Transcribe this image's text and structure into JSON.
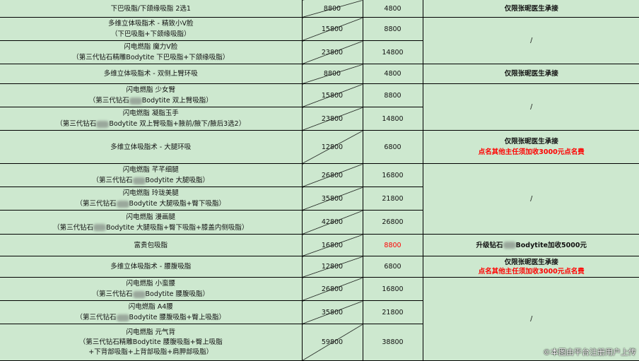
{
  "rows": [
    {
      "name": "下巴吸脂/下颌缘吸脂 2选1",
      "orig": "8800",
      "price": "4800",
      "note": "仅限张昵医生承接"
    },
    {
      "name": "多维立体吸脂术 - 精致小V脸",
      "sub": "（下巴吸脂+下颌缘吸脂）",
      "orig": "15800",
      "price": "8800",
      "note": "/"
    },
    {
      "name": "闪电燃脂 魔力V脸",
      "sub": "（第三代钻石精雕Bodytite 下巴吸脂+下颌缘吸脂）",
      "orig": "23800",
      "price": "14800"
    },
    {
      "name": "多维立体吸脂术 - 双侧上臂环吸",
      "orig": "8800",
      "price": "4800",
      "note": "仅限张昵医生承接"
    },
    {
      "name": "闪电燃脂 少女臂",
      "sub_a": "（第三代钻石",
      "sub_b": "Bodytite 双上臂吸脂）",
      "orig": "15800",
      "price": "8800",
      "note": "/"
    },
    {
      "name": "闪电燃脂 凝脂玉手",
      "sub_a": "（第三代钻石",
      "sub_b": "Bodytite 双上臂吸脂+腋前/腋下/腋后3选2）",
      "orig": "23800",
      "price": "14800"
    },
    {
      "name": "多维立体吸脂术 - 大腿环吸",
      "orig": "12800",
      "price": "6800",
      "note": "仅限张昵医生承接",
      "note_red": "点名其他主任须加收3000元点名费"
    },
    {
      "name": "闪电燃脂 芊芊细腿",
      "sub_a": "（第三代钻石",
      "sub_b": "Bodytite 大腿吸脂）",
      "orig": "26800",
      "price": "16800",
      "note": "/"
    },
    {
      "name": "闪电燃脂 玲珑美腿",
      "sub_a": "（第三代钻石",
      "sub_b": "Bodytite 大腿吸脂+臀下吸脂）",
      "orig": "35800",
      "price": "21800"
    },
    {
      "name": "闪电燃脂 漫画腿",
      "sub_a": "（第三代钻石",
      "sub_b": "Bodytite 大腿吸脂+臀下吸脂+膝盖内侧吸脂）",
      "orig": "42800",
      "price": "26800"
    },
    {
      "name": "富贵包吸脂",
      "orig": "16800",
      "price": "8800",
      "note_a": "升级钻石",
      "note_b": "Bodytite加收5000元"
    },
    {
      "name": "多维立体吸脂术 - 腰腹吸脂",
      "orig": "12800",
      "price": "6800",
      "note": "仅限张昵医生承接",
      "note_red": "点名其他主任须加收3000元点名费"
    },
    {
      "name": "闪电燃脂 小蛮腰",
      "sub_a": "（第三代钻石",
      "sub_b": "Bodytite 腰腹吸脂）",
      "orig": "26800",
      "price": "16800",
      "note": "/"
    },
    {
      "name": "闪电燃脂 A4腰",
      "sub_a": "（第三代钻石",
      "sub_b": "Bodytite 腰腹吸脂+臀上吸脂）",
      "orig": "35800",
      "price": "21800"
    },
    {
      "name": "闪电燃脂 元气背",
      "sub": "（第三代钻石精雕Bodytite 腰腹吸脂+臀上吸脂",
      "sub2": "+下背部吸脂+上背部吸脂+肩胛部吸脂）",
      "orig": "59800",
      "price": "38800"
    }
  ],
  "colors": {
    "background": "#cde8cf",
    "highlight": "#ff0000"
  },
  "watermark": "©本图由平台注册用户上传"
}
